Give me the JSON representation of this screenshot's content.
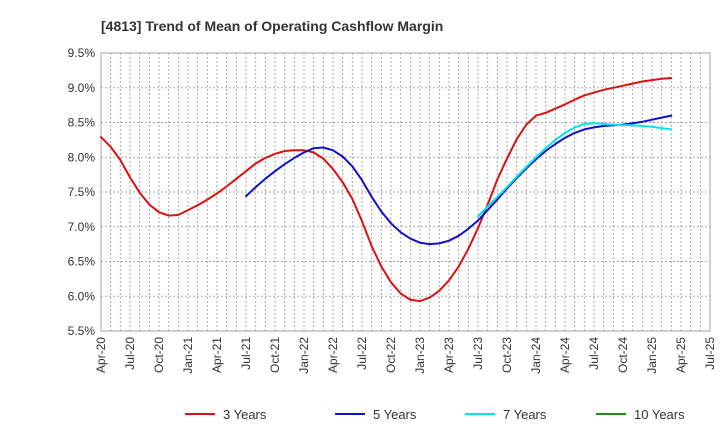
{
  "chart_data": {
    "type": "line",
    "title": "[4813]  Trend of Mean of Operating Cashflow Margin",
    "xlabel": "",
    "ylabel": "",
    "ylim": [
      5.5,
      9.5
    ],
    "yticks": [
      "5.5%",
      "6.0%",
      "6.5%",
      "7.0%",
      "7.5%",
      "8.0%",
      "8.5%",
      "9.0%",
      "9.5%"
    ],
    "xticks": [
      "Apr-20",
      "Jul-20",
      "Oct-20",
      "Jan-21",
      "Apr-21",
      "Jul-21",
      "Oct-21",
      "Jan-22",
      "Apr-22",
      "Jul-22",
      "Oct-22",
      "Jan-23",
      "Apr-23",
      "Jul-23",
      "Oct-23",
      "Jan-24",
      "Apr-24",
      "Jul-24",
      "Oct-24",
      "Jan-25",
      "Apr-25",
      "Jul-25"
    ],
    "grid": true,
    "legend_position": "bottom",
    "series": [
      {
        "name": "3 Years",
        "color": "#dd1111",
        "start_month_index": 0,
        "values": [
          8.29,
          8.15,
          7.96,
          7.71,
          7.49,
          7.32,
          7.21,
          7.16,
          7.17,
          7.24,
          7.31,
          7.39,
          7.48,
          7.58,
          7.69,
          7.8,
          7.91,
          7.99,
          8.05,
          8.09,
          8.1,
          8.1,
          8.07,
          7.98,
          7.83,
          7.64,
          7.4,
          7.08,
          6.72,
          6.43,
          6.2,
          6.04,
          5.95,
          5.93,
          5.98,
          6.08,
          6.23,
          6.43,
          6.68,
          6.98,
          7.32,
          7.68,
          7.98,
          8.26,
          8.47,
          8.6,
          8.64,
          8.7,
          8.76,
          8.83,
          8.89,
          8.93,
          8.97,
          9.0,
          9.03,
          9.06,
          9.09,
          9.11,
          9.13,
          9.14
        ]
      },
      {
        "name": "5 Years",
        "color": "#1111cc",
        "start_month_index": 15,
        "values": [
          7.44,
          7.57,
          7.69,
          7.8,
          7.9,
          7.99,
          8.07,
          8.13,
          8.14,
          8.1,
          8.01,
          7.87,
          7.67,
          7.43,
          7.22,
          7.05,
          6.92,
          6.83,
          6.77,
          6.75,
          6.76,
          6.8,
          6.87,
          6.97,
          7.09,
          7.24,
          7.39,
          7.55,
          7.7,
          7.84,
          7.97,
          8.09,
          8.19,
          8.28,
          8.35,
          8.4,
          8.43,
          8.45,
          8.46,
          8.47,
          8.49,
          8.51,
          8.54,
          8.57,
          8.6
        ]
      },
      {
        "name": "7 Years",
        "color": "#00e5ee",
        "start_month_index": 39,
        "values": [
          7.15,
          7.29,
          7.43,
          7.57,
          7.72,
          7.86,
          8.0,
          8.13,
          8.25,
          8.35,
          8.43,
          8.48,
          8.49,
          8.48,
          8.47,
          8.46,
          8.46,
          8.45,
          8.44,
          8.42,
          8.4
        ]
      },
      {
        "name": "10 Years",
        "color": "#228b22",
        "start_month_index": 0,
        "values": []
      }
    ]
  }
}
